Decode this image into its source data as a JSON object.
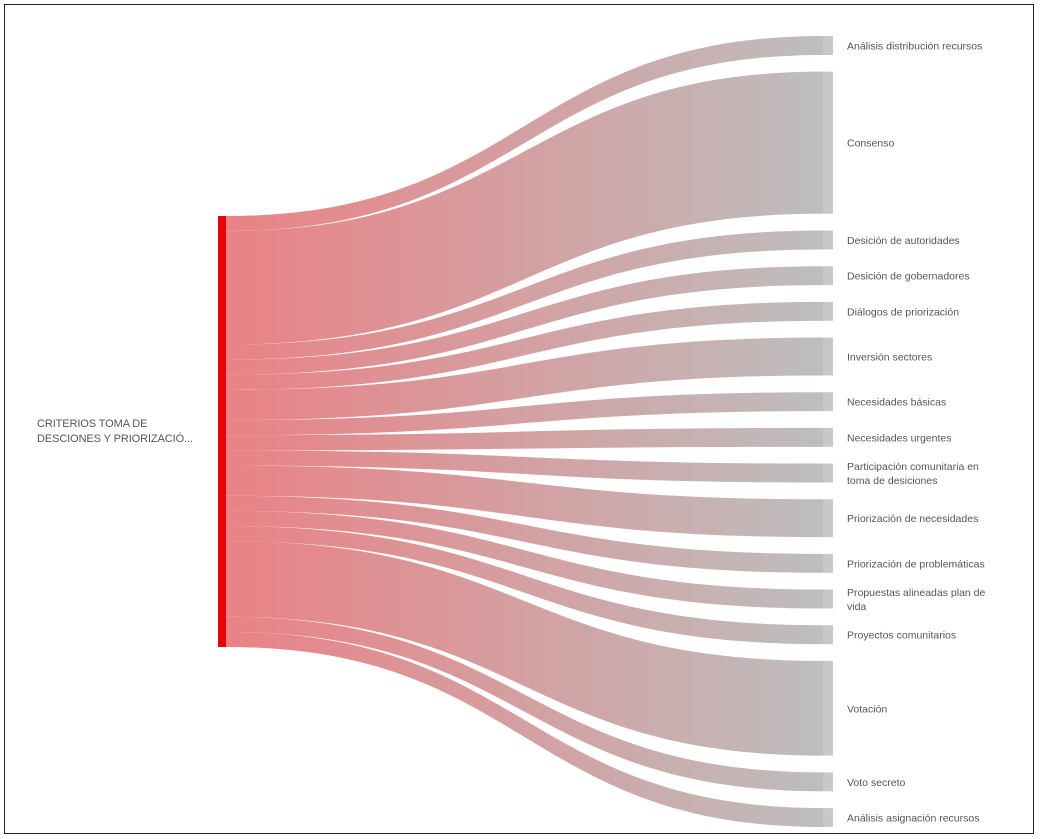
{
  "chart_data": {
    "type": "sankey",
    "source": {
      "label_lines": [
        "CRITERIOS TOMA DE",
        "DESCIONES Y PRIORIZACIÓ..."
      ],
      "color": "#e8000b"
    },
    "targets": [
      {
        "label_lines": [
          "Análisis distribución recursos"
        ],
        "value": 2
      },
      {
        "label_lines": [
          "Consenso"
        ],
        "value": 15
      },
      {
        "label_lines": [
          "Desición de autoridades"
        ],
        "value": 2
      },
      {
        "label_lines": [
          "Desición de gobernadores"
        ],
        "value": 2
      },
      {
        "label_lines": [
          "Diálogos de priorización"
        ],
        "value": 2
      },
      {
        "label_lines": [
          "Inversión sectores"
        ],
        "value": 4
      },
      {
        "label_lines": [
          "Necesidades básicas"
        ],
        "value": 2
      },
      {
        "label_lines": [
          "Necesidades urgentes"
        ],
        "value": 2
      },
      {
        "label_lines": [
          "Participación comunitaria en",
          "toma de desiciones"
        ],
        "value": 2
      },
      {
        "label_lines": [
          "Priorización de necesidades"
        ],
        "value": 4
      },
      {
        "label_lines": [
          "Priorización de problemáticas"
        ],
        "value": 2
      },
      {
        "label_lines": [
          "Propuestas alineadas plan de",
          "vida"
        ],
        "value": 2
      },
      {
        "label_lines": [
          "Proyectos comunitarios"
        ],
        "value": 2
      },
      {
        "label_lines": [
          "Votación"
        ],
        "value": 10
      },
      {
        "label_lines": [
          "Voto secreto"
        ],
        "value": 2
      },
      {
        "label_lines": [
          "Análisis asignación recursos"
        ],
        "value": 2
      }
    ],
    "link_color_start": "#e8777b",
    "link_color_end": "#b8b8b8",
    "target_node_color": "#c8c8c8"
  }
}
